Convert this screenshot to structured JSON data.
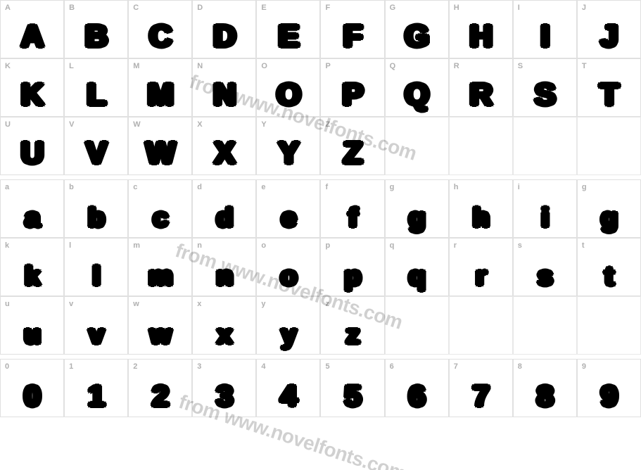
{
  "watermark_text": "from www.novelfonts.com",
  "watermark_color": "#000000",
  "watermark_opacity": 0.18,
  "watermark_fontsize": 28,
  "watermark_angle_deg": 18,
  "grid": {
    "columns": 10,
    "cell_border_color": "#e0e0e0",
    "cell_background": "#ffffff",
    "label_color": "#b0b0b0",
    "label_fontsize": 11,
    "glyph_color": "#000000",
    "glyph_font_family": "Arial Black, Impact, sans-serif",
    "glyph_upper_fontsize": 44,
    "glyph_lower_fontsize": 38,
    "glyph_digit_fontsize": 42
  },
  "rows": [
    {
      "type": "glyph",
      "size": "upper",
      "cells": [
        {
          "label": "A",
          "glyph": "A"
        },
        {
          "label": "B",
          "glyph": "B"
        },
        {
          "label": "C",
          "glyph": "C"
        },
        {
          "label": "D",
          "glyph": "D"
        },
        {
          "label": "E",
          "glyph": "E"
        },
        {
          "label": "F",
          "glyph": "F"
        },
        {
          "label": "G",
          "glyph": "G"
        },
        {
          "label": "H",
          "glyph": "H"
        },
        {
          "label": "I",
          "glyph": "I"
        },
        {
          "label": "J",
          "glyph": "J"
        }
      ]
    },
    {
      "type": "glyph",
      "size": "upper",
      "cells": [
        {
          "label": "K",
          "glyph": "K"
        },
        {
          "label": "L",
          "glyph": "L"
        },
        {
          "label": "M",
          "glyph": "M"
        },
        {
          "label": "N",
          "glyph": "N"
        },
        {
          "label": "O",
          "glyph": "O"
        },
        {
          "label": "P",
          "glyph": "P"
        },
        {
          "label": "Q",
          "glyph": "Q"
        },
        {
          "label": "R",
          "glyph": "R"
        },
        {
          "label": "S",
          "glyph": "S"
        },
        {
          "label": "T",
          "glyph": "T"
        }
      ]
    },
    {
      "type": "glyph",
      "size": "upper",
      "cells": [
        {
          "label": "U",
          "glyph": "U"
        },
        {
          "label": "V",
          "glyph": "V"
        },
        {
          "label": "W",
          "glyph": "W"
        },
        {
          "label": "X",
          "glyph": "X"
        },
        {
          "label": "Y",
          "glyph": "Y"
        },
        {
          "label": "Z",
          "glyph": "Z"
        },
        {
          "label": "",
          "glyph": ""
        },
        {
          "label": "",
          "glyph": ""
        },
        {
          "label": "",
          "glyph": ""
        },
        {
          "label": "",
          "glyph": ""
        }
      ]
    },
    {
      "type": "gap"
    },
    {
      "type": "glyph",
      "size": "lower",
      "cells": [
        {
          "label": "a",
          "glyph": "a"
        },
        {
          "label": "b",
          "glyph": "b"
        },
        {
          "label": "c",
          "glyph": "c"
        },
        {
          "label": "d",
          "glyph": "d"
        },
        {
          "label": "e",
          "glyph": "e"
        },
        {
          "label": "f",
          "glyph": "f"
        },
        {
          "label": "g",
          "glyph": "g"
        },
        {
          "label": "h",
          "glyph": "h"
        },
        {
          "label": "i",
          "glyph": "i"
        },
        {
          "label": "g",
          "glyph": "g"
        }
      ]
    },
    {
      "type": "glyph",
      "size": "lower",
      "cells": [
        {
          "label": "k",
          "glyph": "k"
        },
        {
          "label": "l",
          "glyph": "l"
        },
        {
          "label": "m",
          "glyph": "m"
        },
        {
          "label": "n",
          "glyph": "n"
        },
        {
          "label": "o",
          "glyph": "o"
        },
        {
          "label": "p",
          "glyph": "p"
        },
        {
          "label": "q",
          "glyph": "q"
        },
        {
          "label": "r",
          "glyph": "r"
        },
        {
          "label": "s",
          "glyph": "s"
        },
        {
          "label": "t",
          "glyph": "t"
        }
      ]
    },
    {
      "type": "glyph",
      "size": "lower",
      "cells": [
        {
          "label": "u",
          "glyph": "u"
        },
        {
          "label": "v",
          "glyph": "v"
        },
        {
          "label": "w",
          "glyph": "w"
        },
        {
          "label": "x",
          "glyph": "x"
        },
        {
          "label": "y",
          "glyph": "y"
        },
        {
          "label": "z",
          "glyph": "z"
        },
        {
          "label": "",
          "glyph": ""
        },
        {
          "label": "",
          "glyph": ""
        },
        {
          "label": "",
          "glyph": ""
        },
        {
          "label": "",
          "glyph": ""
        }
      ]
    },
    {
      "type": "gap"
    },
    {
      "type": "glyph",
      "size": "digit",
      "cells": [
        {
          "label": "0",
          "glyph": "0"
        },
        {
          "label": "1",
          "glyph": "1"
        },
        {
          "label": "2",
          "glyph": "2"
        },
        {
          "label": "3",
          "glyph": "3"
        },
        {
          "label": "4",
          "glyph": "4"
        },
        {
          "label": "5",
          "glyph": "5"
        },
        {
          "label": "6",
          "glyph": "6"
        },
        {
          "label": "7",
          "glyph": "7"
        },
        {
          "label": "8",
          "glyph": "8"
        },
        {
          "label": "9",
          "glyph": "9"
        }
      ]
    }
  ]
}
